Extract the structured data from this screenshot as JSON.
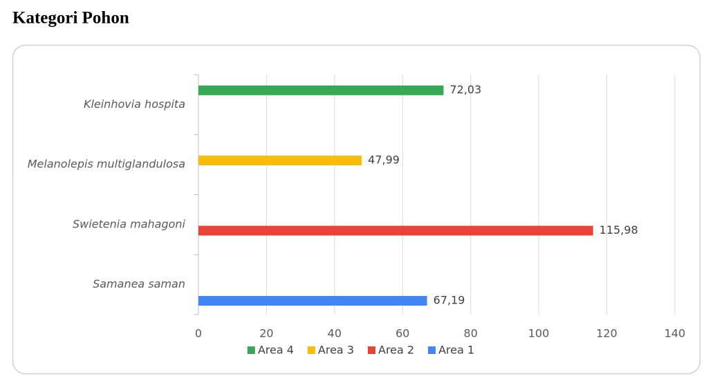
{
  "chart_data": {
    "type": "hbar",
    "title": "Kategori Pohon",
    "categories": [
      "Samanea saman",
      "Swietenia mahagoni",
      "Melanolepis multiglandulosa",
      "Kleinhovia hospita"
    ],
    "series": [
      {
        "name": "Area 1",
        "color": "#4285f4",
        "values": [
          67.19,
          null,
          null,
          null
        ],
        "value_labels": [
          "67,19",
          null,
          null,
          null
        ]
      },
      {
        "name": "Area 2",
        "color": "#ea4335",
        "values": [
          null,
          115.98,
          null,
          null
        ],
        "value_labels": [
          null,
          "115,98",
          null,
          null
        ]
      },
      {
        "name": "Area 3",
        "color": "#fbbc04",
        "values": [
          null,
          null,
          47.99,
          null
        ],
        "value_labels": [
          null,
          null,
          "47,99",
          null
        ]
      },
      {
        "name": "Area 4",
        "color": "#34a853",
        "values": [
          null,
          null,
          null,
          72.03
        ],
        "value_labels": [
          null,
          null,
          null,
          "72,03"
        ]
      }
    ],
    "xlim": [
      0,
      140
    ],
    "xticks": [
      0,
      20,
      40,
      60,
      80,
      100,
      120,
      140
    ],
    "grid": true,
    "legend": "bottom"
  }
}
